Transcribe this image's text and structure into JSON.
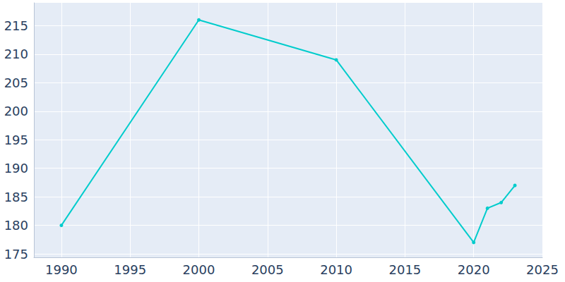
{
  "chart_data": {
    "type": "line",
    "x": [
      1990,
      2000,
      2010,
      2020,
      2021,
      2022,
      2023
    ],
    "values": [
      180,
      216,
      209,
      177,
      183,
      184,
      187
    ],
    "color": "#00cccc",
    "marker": "circle",
    "xlim": [
      1988,
      2025
    ],
    "xticks": [
      1990,
      1995,
      2000,
      2005,
      2010,
      2015,
      2020,
      2025
    ],
    "ylim": [
      174.4,
      219
    ],
    "yticks": [
      175,
      180,
      185,
      190,
      195,
      200,
      205,
      210,
      215
    ],
    "grid": true
  }
}
